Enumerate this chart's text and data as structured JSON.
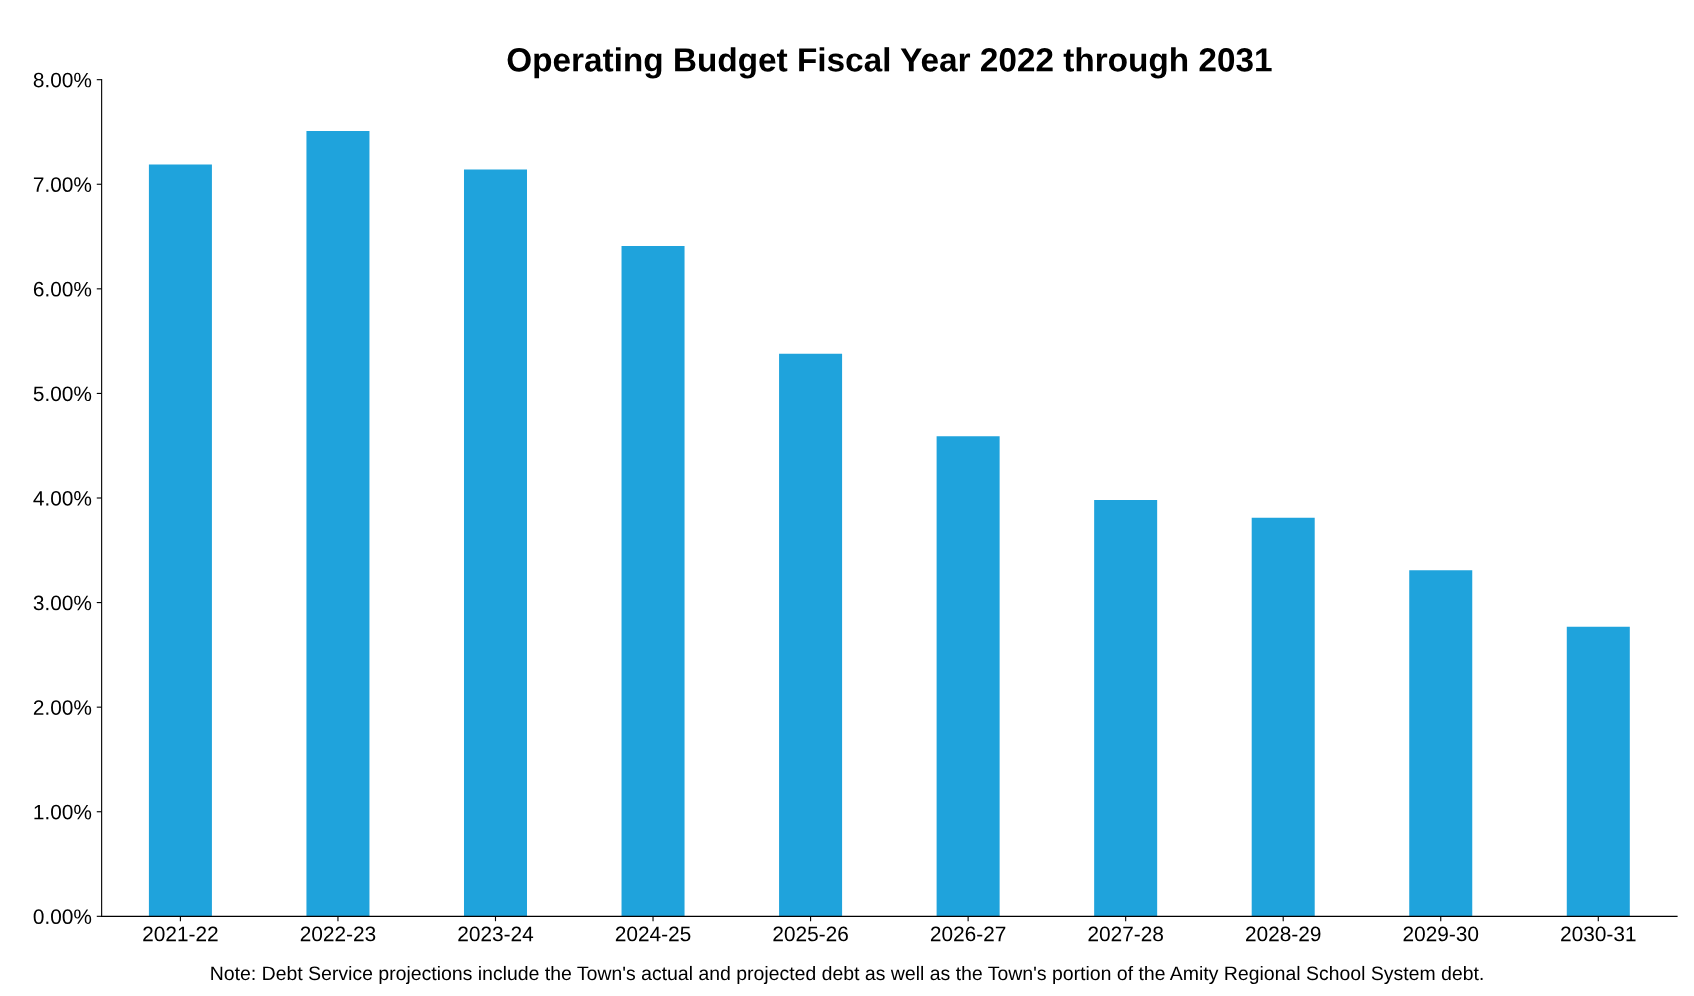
{
  "chart_data": {
    "type": "bar",
    "title": "Operating Budget Fiscal Year 2022 through 2031",
    "categories": [
      "2021-22",
      "2022-23",
      "2023-24",
      "2024-25",
      "2025-26",
      "2026-27",
      "2027-28",
      "2028-29",
      "2029-30",
      "2030-31"
    ],
    "values": [
      7.19,
      7.51,
      7.14,
      6.41,
      5.38,
      4.59,
      3.98,
      3.81,
      3.31,
      2.77
    ],
    "color": "#1fa3dc",
    "ylim": [
      0,
      8
    ],
    "yticks": [
      {
        "value": 0,
        "label": "0.00%"
      },
      {
        "value": 1,
        "label": "1.00%"
      },
      {
        "value": 2,
        "label": "2.00%"
      },
      {
        "value": 3,
        "label": "3.00%"
      },
      {
        "value": 4,
        "label": "4.00%"
      },
      {
        "value": 5,
        "label": "5.00%"
      },
      {
        "value": 6,
        "label": "6.00%"
      },
      {
        "value": 7,
        "label": "7.00%"
      },
      {
        "value": 8,
        "label": "8.00%"
      }
    ],
    "annotations": [
      "Note: Debt Service projections include the Town's actual and projected debt as well as the Town's portion of the Amity Regional School System debt."
    ]
  }
}
